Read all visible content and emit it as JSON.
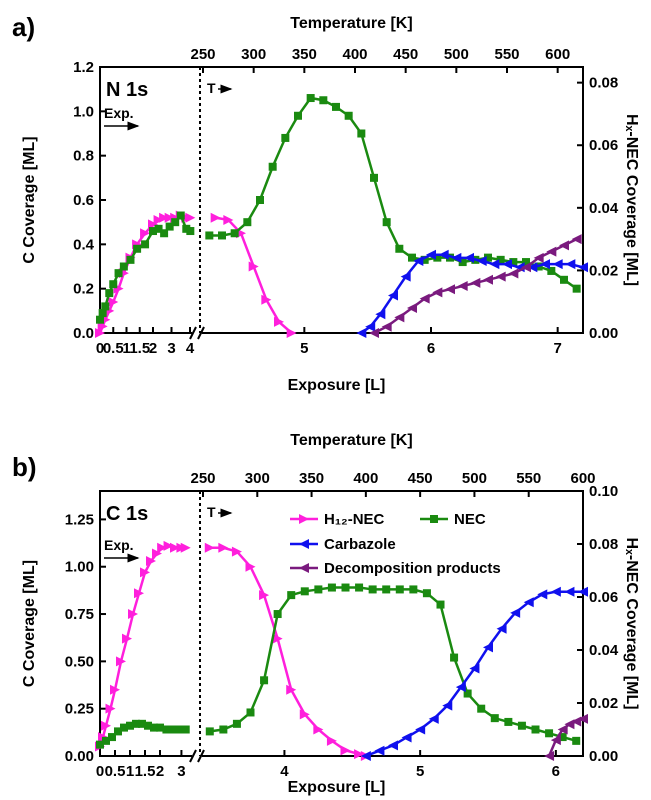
{
  "chart_data": [
    {
      "type": "line",
      "panel_letter": "a)",
      "spectrum_label": "N 1s",
      "exposure_label": "Exp.",
      "temperature_label": "T",
      "xlabel": "Exposure [L]",
      "xlabel_top": "Temperature [K]",
      "ylabel": "C Coverage [ML]",
      "ylabel_right": "Hₓ-NEC Coverage [ML]",
      "ylim": [
        0,
        1.2
      ],
      "ylim_right": [
        0,
        0.085
      ],
      "yticks": [
        0.0,
        0.2,
        0.4,
        0.6,
        0.8,
        1.0,
        1.2
      ],
      "ytick_labels": [
        "0.0",
        "0.2",
        "0.4",
        "0.6",
        "0.8",
        "1.0",
        "1.2"
      ],
      "yticks_right": [
        0.0,
        0.02,
        0.04,
        0.06,
        0.08
      ],
      "ytick_labels_right": [
        "0.00",
        "0.02",
        "0.04",
        "0.06",
        "0.08"
      ],
      "break_exposure": 4.2,
      "xlim": [
        0,
        7.2
      ],
      "xticks": [
        0,
        0.5,
        1,
        1.5,
        2,
        3,
        4,
        5,
        6,
        7
      ],
      "xtick_labels": [
        "0",
        "0.5",
        "1",
        "1.5",
        "2",
        "3",
        "4",
        "5",
        "6",
        "7"
      ],
      "top_ticks": [
        4.2,
        4.6,
        5.0,
        5.4,
        5.8,
        6.2,
        6.6,
        7.0,
        7.2
      ],
      "top_tick_labels": [
        "250",
        "300",
        "350",
        "400",
        "450",
        "500",
        "550",
        "600",
        ""
      ],
      "series": [
        {
          "name": "H12-NEC",
          "color": "#ff1fdc",
          "marker": "tri-right",
          "x": [
            0,
            0.1,
            0.2,
            0.35,
            0.5,
            0.7,
            0.9,
            1.15,
            1.4,
            1.7,
            2.0,
            2.3,
            2.6,
            2.9,
            3.2,
            3.5,
            3.8,
            4.1,
            4.3,
            4.4,
            4.5,
            4.6,
            4.7,
            4.8,
            4.9
          ],
          "y": [
            0,
            0.03,
            0.06,
            0.1,
            0.14,
            0.2,
            0.27,
            0.34,
            0.4,
            0.45,
            0.49,
            0.51,
            0.52,
            0.52,
            0.52,
            0.53,
            0.52,
            0.52,
            0.52,
            0.51,
            0.45,
            0.3,
            0.15,
            0.05,
            0
          ]
        },
        {
          "name": "NEC",
          "color": "#1a8a10",
          "marker": "square",
          "x": [
            0,
            0.1,
            0.2,
            0.35,
            0.5,
            0.7,
            0.9,
            1.15,
            1.4,
            1.7,
            2.0,
            2.3,
            2.6,
            2.9,
            3.2,
            3.5,
            3.8,
            4.1,
            4.25,
            4.35,
            4.45,
            4.55,
            4.65,
            4.75,
            4.85,
            4.95,
            5.05,
            5.15,
            5.25,
            5.35,
            5.45,
            5.55,
            5.65,
            5.75,
            5.85,
            5.95,
            6.05,
            6.15,
            6.25,
            6.35,
            6.45,
            6.55,
            6.65,
            6.75,
            6.85,
            6.95,
            7.05,
            7.15
          ],
          "y": [
            0.06,
            0.09,
            0.12,
            0.18,
            0.22,
            0.27,
            0.3,
            0.33,
            0.38,
            0.4,
            0.46,
            0.47,
            0.45,
            0.48,
            0.5,
            0.53,
            0.47,
            0.46,
            0.44,
            0.44,
            0.45,
            0.5,
            0.6,
            0.75,
            0.88,
            0.98,
            1.06,
            1.05,
            1.02,
            0.98,
            0.9,
            0.7,
            0.5,
            0.38,
            0.34,
            0.33,
            0.34,
            0.34,
            0.32,
            0.33,
            0.34,
            0.33,
            0.32,
            0.32,
            0.3,
            0.28,
            0.24,
            0.2
          ]
        },
        {
          "name": "Carbazole",
          "color": "#1010ee",
          "marker": "tri-left",
          "x": [
            5.45,
            5.52,
            5.6,
            5.7,
            5.8,
            5.9,
            6.0,
            6.1,
            6.2,
            6.3,
            6.4,
            6.5,
            6.6,
            6.7,
            6.8,
            6.9,
            7.0,
            7.1,
            7.2
          ],
          "y": [
            0,
            0.002,
            0.006,
            0.012,
            0.018,
            0.023,
            0.025,
            0.025,
            0.024,
            0.024,
            0.023,
            0.022,
            0.022,
            0.021,
            0.021,
            0.022,
            0.022,
            0.022,
            0.021
          ]
        },
        {
          "name": "Decomposition products",
          "color": "#7a1a7e",
          "marker": "tri-left",
          "x": [
            5.55,
            5.65,
            5.75,
            5.85,
            5.95,
            6.05,
            6.15,
            6.25,
            6.35,
            6.45,
            6.55,
            6.65,
            6.75,
            6.85,
            6.95,
            7.05,
            7.15
          ],
          "y": [
            0,
            0.002,
            0.005,
            0.008,
            0.011,
            0.013,
            0.014,
            0.015,
            0.016,
            0.017,
            0.018,
            0.019,
            0.021,
            0.024,
            0.026,
            0.028,
            0.03
          ]
        }
      ]
    },
    {
      "type": "line",
      "panel_letter": "b)",
      "spectrum_label": "C 1s",
      "exposure_label": "Exp.",
      "temperature_label": "T",
      "xlabel": "Exposure [L]",
      "xlabel_top": "Temperature [K]",
      "ylabel": "C Coverage [ML]",
      "ylabel_right": "Hₓ-NEC Coverage [ML]",
      "ylim": [
        0,
        1.4
      ],
      "ylim_right": [
        0,
        0.1
      ],
      "yticks": [
        0.0,
        0.25,
        0.5,
        0.75,
        1.0,
        1.25
      ],
      "ytick_labels": [
        "0.00",
        "0.25",
        "0.50",
        "0.75",
        "1.00",
        "1.25"
      ],
      "yticks_right": [
        0.0,
        0.02,
        0.04,
        0.06,
        0.08,
        0.1
      ],
      "ytick_labels_right": [
        "0.00",
        "0.02",
        "0.04",
        "0.06",
        "0.08",
        "0.10"
      ],
      "break_exposure": 3.4,
      "xlim": [
        0,
        6.2
      ],
      "xticks": [
        0,
        0.5,
        1,
        1.5,
        2,
        3,
        4,
        5,
        6
      ],
      "xtick_labels": [
        "0",
        "0.5",
        "1",
        "1.5",
        "2",
        "3",
        "4",
        "5",
        "6"
      ],
      "top_ticks": [
        3.4,
        3.8,
        4.2,
        4.6,
        5.0,
        5.4,
        5.8,
        6.2
      ],
      "top_tick_labels": [
        "250",
        "300",
        "350",
        "400",
        "450",
        "500",
        "550",
        "600"
      ],
      "legend": [
        {
          "name": "H₁₂-NEC",
          "color": "#ff1fdc",
          "marker": "tri-right"
        },
        {
          "name": "NEC",
          "color": "#1a8a10",
          "marker": "square"
        },
        {
          "name": "Carbazole",
          "color": "#1010ee",
          "marker": "tri-left"
        },
        {
          "name": "Decomposition products",
          "color": "#7a1a7e",
          "marker": "tri-left"
        }
      ],
      "series": [
        {
          "name": "H12-NEC",
          "color": "#ff1fdc",
          "marker": "tri-right",
          "x": [
            0,
            0.1,
            0.2,
            0.35,
            0.5,
            0.7,
            0.9,
            1.1,
            1.3,
            1.5,
            1.7,
            1.9,
            2.1,
            2.4,
            2.7,
            3.0,
            3.2,
            3.45,
            3.55,
            3.65,
            3.75,
            3.85,
            3.95,
            4.05,
            4.15,
            4.25,
            4.35,
            4.45,
            4.55,
            4.6
          ],
          "y": [
            0.05,
            0.1,
            0.16,
            0.25,
            0.35,
            0.5,
            0.62,
            0.75,
            0.86,
            0.97,
            1.03,
            1.07,
            1.1,
            1.11,
            1.1,
            1.1,
            1.1,
            1.1,
            1.1,
            1.08,
            1.0,
            0.85,
            0.62,
            0.35,
            0.22,
            0.14,
            0.08,
            0.03,
            0.01,
            0
          ]
        },
        {
          "name": "NEC",
          "color": "#1a8a10",
          "marker": "square",
          "x": [
            0,
            0.2,
            0.4,
            0.6,
            0.8,
            1.0,
            1.2,
            1.4,
            1.6,
            1.8,
            2.0,
            2.3,
            2.6,
            2.9,
            3.2,
            3.45,
            3.55,
            3.65,
            3.75,
            3.85,
            3.95,
            4.05,
            4.15,
            4.25,
            4.35,
            4.45,
            4.55,
            4.65,
            4.75,
            4.85,
            4.95,
            5.05,
            5.15,
            5.25,
            5.35,
            5.45,
            5.55,
            5.65,
            5.75,
            5.85,
            5.95,
            6.05,
            6.15
          ],
          "y": [
            0.06,
            0.08,
            0.1,
            0.13,
            0.15,
            0.16,
            0.17,
            0.17,
            0.16,
            0.15,
            0.15,
            0.14,
            0.14,
            0.14,
            0.14,
            0.13,
            0.14,
            0.17,
            0.23,
            0.4,
            0.75,
            0.85,
            0.87,
            0.88,
            0.89,
            0.89,
            0.89,
            0.88,
            0.88,
            0.88,
            0.88,
            0.86,
            0.8,
            0.52,
            0.33,
            0.25,
            0.2,
            0.18,
            0.16,
            0.14,
            0.12,
            0.1,
            0.08
          ]
        },
        {
          "name": "Carbazole",
          "color": "#1010ee",
          "marker": "tri-left",
          "x": [
            4.6,
            4.7,
            4.8,
            4.9,
            5.0,
            5.1,
            5.2,
            5.3,
            5.4,
            5.5,
            5.6,
            5.7,
            5.8,
            5.9,
            6.0,
            6.1,
            6.2
          ],
          "y": [
            0,
            0.002,
            0.004,
            0.007,
            0.01,
            0.014,
            0.019,
            0.026,
            0.033,
            0.041,
            0.048,
            0.054,
            0.058,
            0.061,
            0.062,
            0.062,
            0.062
          ]
        },
        {
          "name": "Decomposition products",
          "color": "#7a1a7e",
          "marker": "tri-left",
          "x": [
            5.95,
            6.0,
            6.05,
            6.1,
            6.15,
            6.2
          ],
          "y": [
            0,
            0.006,
            0.01,
            0.012,
            0.013,
            0.014
          ]
        }
      ]
    }
  ]
}
